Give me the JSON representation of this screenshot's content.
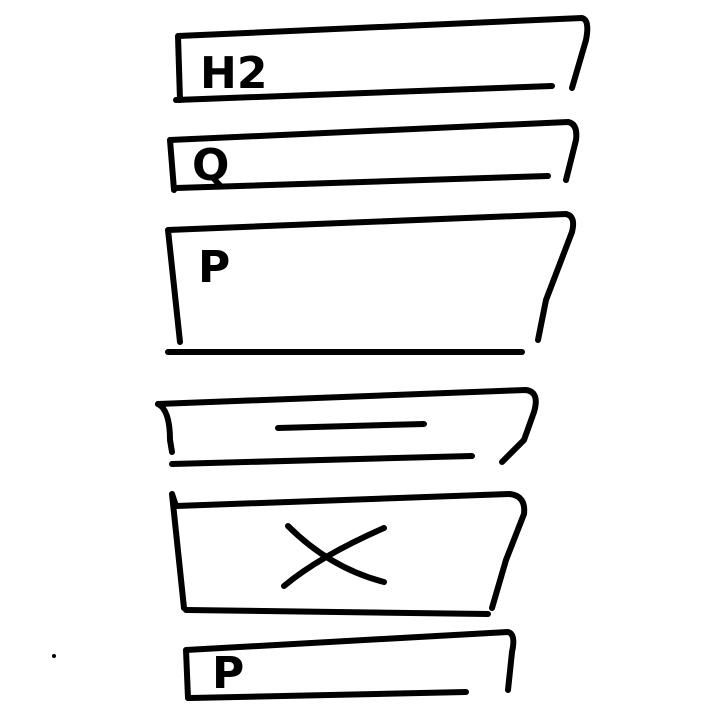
{
  "wireframe": {
    "heading_block": {
      "label": "H2"
    },
    "question_block": {
      "label": "Q"
    },
    "paragraph_block": {
      "label": "P"
    },
    "divider_block": {
      "label": ""
    },
    "image_placeholder_block": {
      "label": ""
    },
    "footer_paragraph_block": {
      "label": "P"
    }
  },
  "colors": {
    "ink": "#000000",
    "paper": "#ffffff"
  },
  "icons": {
    "divider": "horizontal-line-icon",
    "image_placeholder": "x-cross-icon"
  }
}
